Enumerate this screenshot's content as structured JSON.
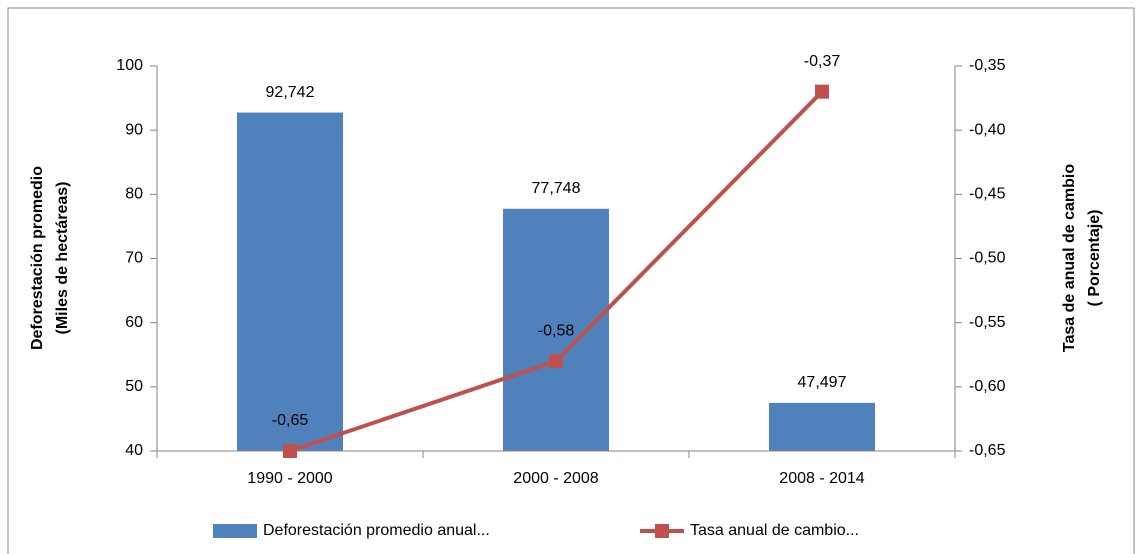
{
  "chart_data": {
    "type": "bar",
    "categories": [
      "1990 - 2000",
      "2000 - 2008",
      "2008 - 2014"
    ],
    "ylabel": [
      "Deforestación  promedio",
      "(Miles de hectáreas)"
    ],
    "y2label": [
      "Tasa de anual de cambio",
      "( Porcentaje)"
    ],
    "ylim": [
      40,
      100
    ],
    "yticks": [
      40,
      50,
      60,
      70,
      80,
      90,
      100
    ],
    "y2lim": [
      -0.65,
      -0.35
    ],
    "y2ticks": [
      {
        "value": -0.65,
        "label": "-0,65"
      },
      {
        "value": -0.6,
        "label": "-0,60"
      },
      {
        "value": -0.55,
        "label": "-0,55"
      },
      {
        "value": -0.5,
        "label": "-0,50"
      },
      {
        "value": -0.45,
        "label": "-0,45"
      },
      {
        "value": -0.4,
        "label": "-0,40"
      },
      {
        "value": -0.35,
        "label": "-0,35"
      }
    ],
    "series": [
      {
        "name": "Deforestación promedio anual...",
        "type": "bar",
        "color": "#4f81bd",
        "values": [
          92.742,
          77.748,
          47.497
        ],
        "value_labels": [
          "92,742",
          "77,748",
          "47,497"
        ]
      },
      {
        "name": "Tasa anual de cambio...",
        "type": "line",
        "axis": "y2",
        "color": "#c0504d",
        "values": [
          -0.65,
          -0.58,
          -0.37
        ],
        "value_labels": [
          "-0,65",
          "-0,58",
          "-0,37"
        ]
      }
    ],
    "legend": "bottom"
  }
}
